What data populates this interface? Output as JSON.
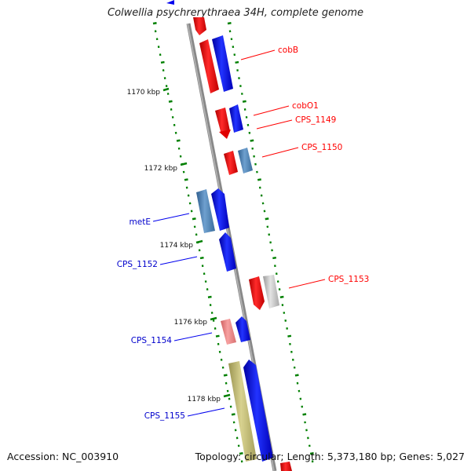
{
  "title": "Colwellia psychrerythraea 34H, complete genome",
  "footer": {
    "accession": "Accession: NC_003910",
    "topology": "Topology: circular; Length: 5,373,180 bp; Genes: 5,027"
  },
  "ticks": [
    "1170 kbp",
    "1172 kbp",
    "1174 kbp",
    "1176 kbp",
    "1178 kbp"
  ],
  "genes": {
    "cobB": "cobB",
    "cobO1": "cobO1",
    "cps1149": "CPS_1149",
    "cps1150": "CPS_1150",
    "metE": "metE",
    "cps1152": "CPS_1152",
    "cps1153": "CPS_1153",
    "cps1154": "CPS_1154",
    "cps1155": "CPS_1155"
  },
  "colors": {
    "forward_red": "#ff0000",
    "reverse_blue": "#0000ee",
    "steel_blue": "#4f86b8",
    "light_red": "#f08080",
    "olive": "#bdb76b",
    "gray": "#bfbfbf",
    "tick_green": "#008000",
    "backbone": "#888888"
  }
}
